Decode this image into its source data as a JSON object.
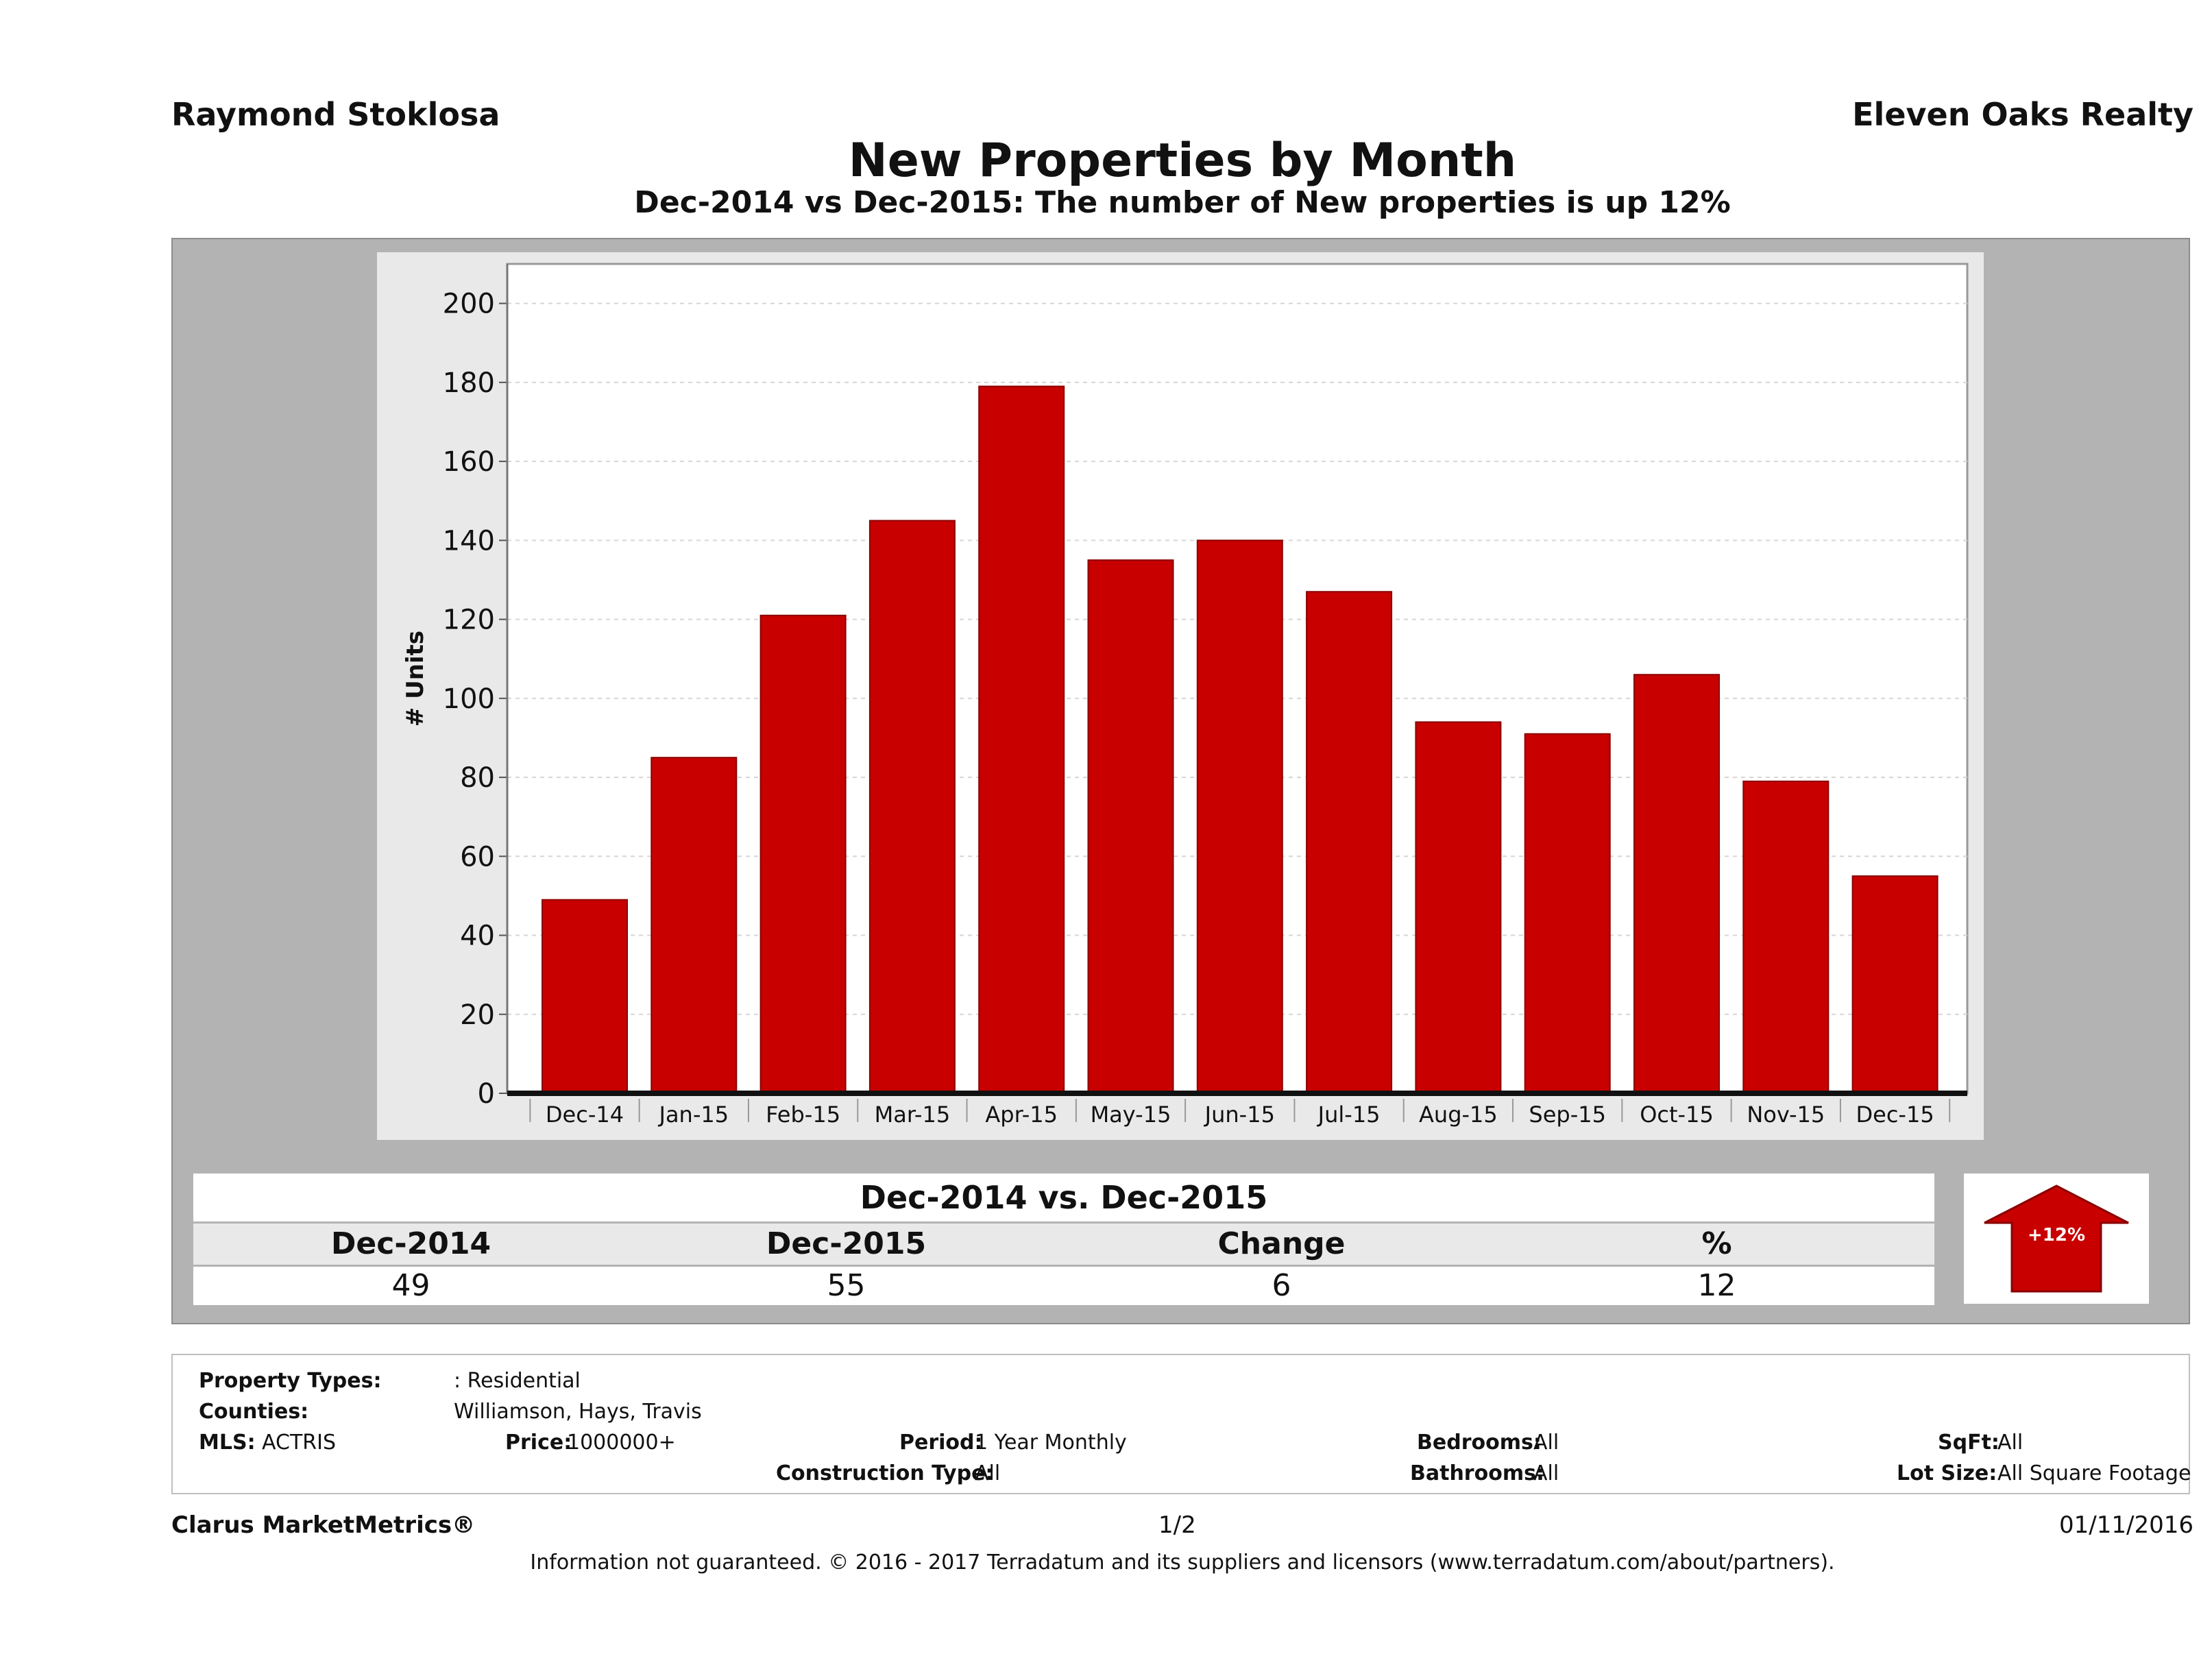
{
  "header": {
    "agent": "Raymond Stoklosa",
    "broker": "Eleven Oaks Realty"
  },
  "chart_data": {
    "type": "bar",
    "title": "New Properties by Month",
    "subtitle": "Dec-2014 vs Dec-2015: The number of New  properties is up 12%",
    "ylabel": "# Units",
    "xlabel": "",
    "categories": [
      "Dec-14",
      "Jan-15",
      "Feb-15",
      "Mar-15",
      "Apr-15",
      "May-15",
      "Jun-15",
      "Jul-15",
      "Aug-15",
      "Sep-15",
      "Oct-15",
      "Nov-15",
      "Dec-15"
    ],
    "values": [
      49,
      85,
      121,
      145,
      179,
      135,
      140,
      127,
      94,
      91,
      106,
      79,
      55
    ],
    "ylim": [
      0,
      210
    ],
    "yticks": [
      0,
      20,
      40,
      60,
      80,
      100,
      120,
      140,
      160,
      180,
      200
    ],
    "grid": true,
    "bar_color": "#c80000"
  },
  "summary": {
    "heading": "Dec-2014 vs. Dec-2015",
    "labels": [
      "Dec-2014",
      "Dec-2015",
      "Change",
      "%"
    ],
    "values": [
      "49",
      "55",
      "6",
      "12"
    ],
    "badge": "+12%",
    "badge_color": "#c80000"
  },
  "filters": {
    "property_types_label": "Property Types:",
    "property_types_value": ": Residential",
    "counties_label": "Counties:",
    "counties_value": "Williamson, Hays, Travis",
    "mls_label": "MLS:",
    "mls_value": "ACTRIS",
    "price_label": "Price:",
    "price_value": "1000000+",
    "period_label": "Period:",
    "period_value": "1 Year Monthly",
    "construction_label": "Construction Type:",
    "construction_value": "All",
    "bedrooms_label": "Bedrooms:",
    "bedrooms_value": "All",
    "bathrooms_label": "Bathrooms:",
    "bathrooms_value": "All",
    "sqft_label": "SqFt:",
    "sqft_value": "All",
    "lotsize_label": "Lot Size:",
    "lotsize_value": "All Square Footage"
  },
  "footer": {
    "brand": "Clarus MarketMetrics®",
    "page": "1/2",
    "date": "01/11/2016",
    "disclaimer": "Information not guaranteed. © 2016 - 2017 Terradatum and its suppliers and licensors (www.terradatum.com/about/partners)."
  }
}
